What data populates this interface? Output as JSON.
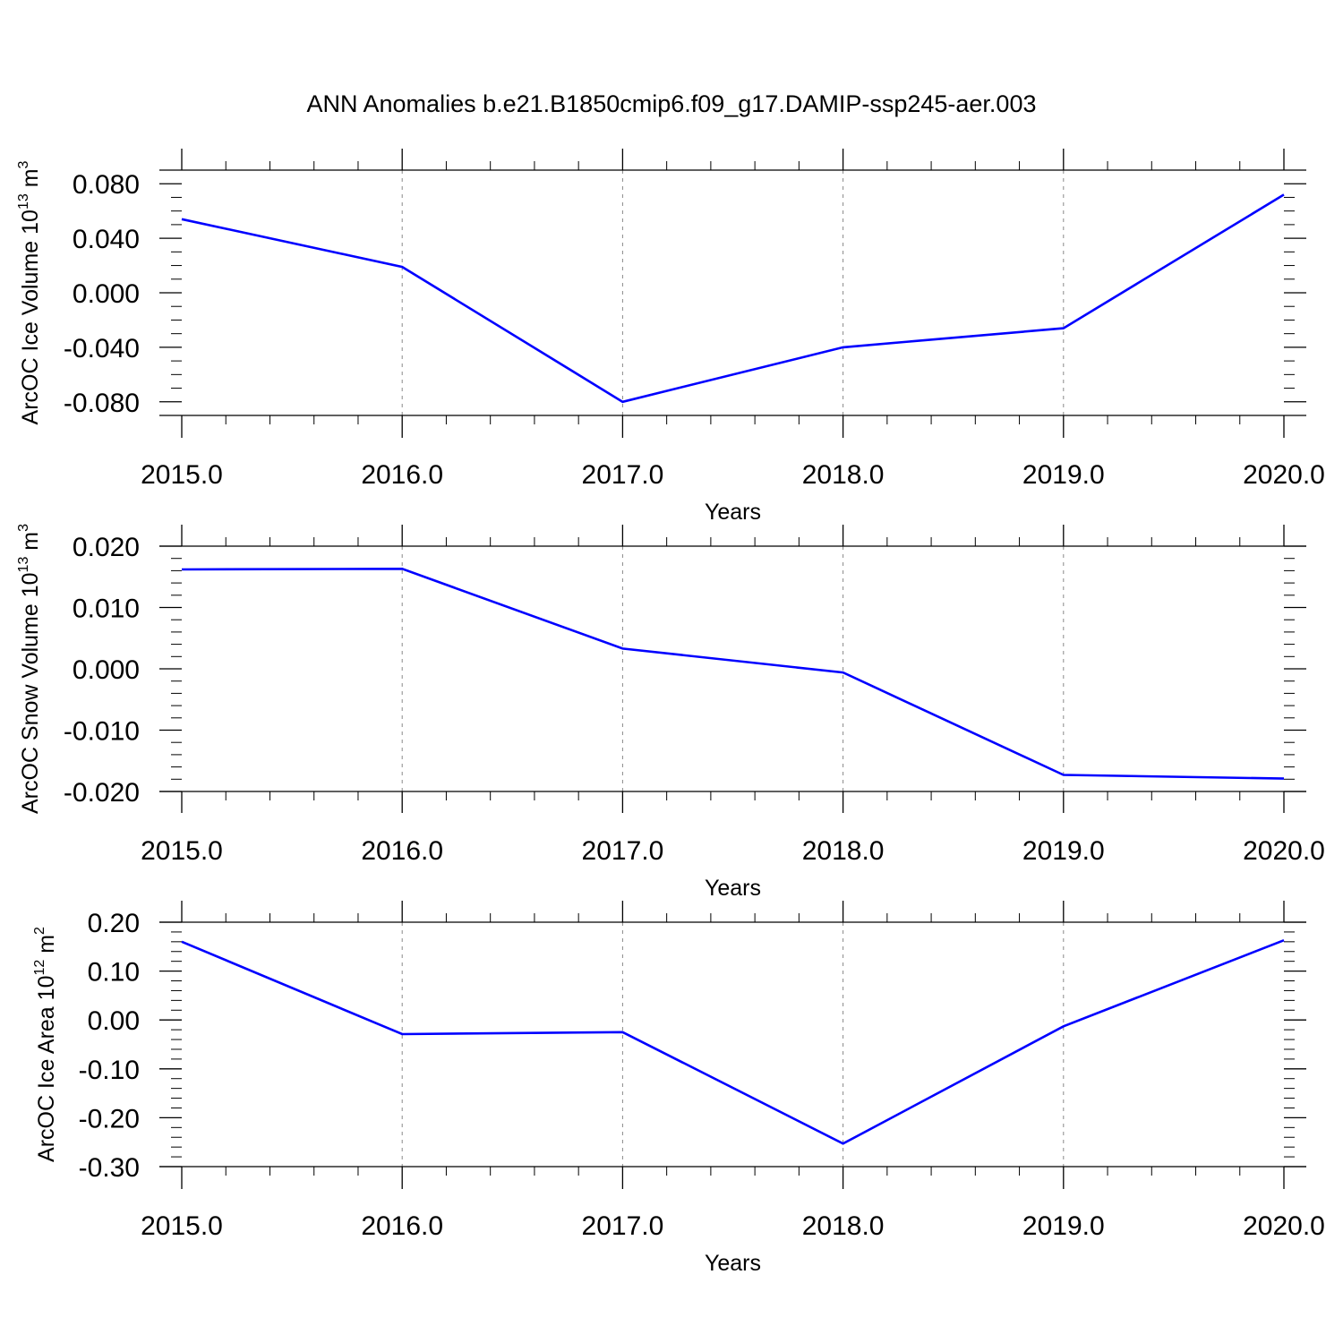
{
  "title": "ANN Anomalies b.e21.B1850cmip6.f09_g17.DAMIP-ssp245-aer.003",
  "line_color": "#0000ff",
  "chart_data": [
    {
      "type": "line",
      "ylabel": "ArcOC Ice Volume 10",
      "ylabel_exponent": "13",
      "ylabel_unit": " m",
      "ylabel_unit_exponent": "3",
      "xlabel": "Years",
      "xlim": [
        2015,
        2020
      ],
      "ylim": [
        -0.09,
        0.09
      ],
      "x_ticks": [
        2015,
        2016,
        2017,
        2018,
        2019,
        2020
      ],
      "x_tick_labels": [
        "2015.0",
        "2016.0",
        "2017.0",
        "2018.0",
        "2019.0",
        "2020.0"
      ],
      "y_ticks": [
        0.08,
        0.04,
        0.0,
        -0.04,
        -0.08
      ],
      "y_tick_labels": [
        "0.080",
        "0.040",
        "0.000",
        "-0.040",
        "-0.080"
      ],
      "y_minor_step": 0.01,
      "grid": "vertical dashed at major x ticks",
      "x": [
        2015,
        2016,
        2017,
        2018,
        2019,
        2020
      ],
      "y": [
        0.054,
        0.019,
        -0.08,
        -0.04,
        -0.026,
        0.072
      ]
    },
    {
      "type": "line",
      "ylabel": "ArcOC Snow Volume 10",
      "ylabel_exponent": "13",
      "ylabel_unit": " m",
      "ylabel_unit_exponent": "3",
      "xlabel": "Years",
      "xlim": [
        2015,
        2020
      ],
      "ylim": [
        -0.02,
        0.02
      ],
      "x_ticks": [
        2015,
        2016,
        2017,
        2018,
        2019,
        2020
      ],
      "x_tick_labels": [
        "2015.0",
        "2016.0",
        "2017.0",
        "2018.0",
        "2019.0",
        "2020.0"
      ],
      "y_ticks": [
        0.02,
        0.01,
        0.0,
        -0.01,
        -0.02
      ],
      "y_tick_labels": [
        "0.020",
        "0.010",
        "0.000",
        "-0.010",
        "-0.020"
      ],
      "y_minor_step": 0.002,
      "grid": "vertical dashed at major x ticks",
      "x": [
        2015,
        2016,
        2017,
        2018,
        2019,
        2020
      ],
      "y": [
        0.0162,
        0.0163,
        0.0033,
        -0.0006,
        -0.0173,
        -0.0179
      ]
    },
    {
      "type": "line",
      "ylabel": "ArcOC Ice Area 10",
      "ylabel_exponent": "12",
      "ylabel_unit": " m",
      "ylabel_unit_exponent": "2",
      "xlabel": "Years",
      "xlim": [
        2015,
        2020
      ],
      "ylim": [
        -0.3,
        0.2
      ],
      "x_ticks": [
        2015,
        2016,
        2017,
        2018,
        2019,
        2020
      ],
      "x_tick_labels": [
        "2015.0",
        "2016.0",
        "2017.0",
        "2018.0",
        "2019.0",
        "2020.0"
      ],
      "y_ticks": [
        0.2,
        0.1,
        0.0,
        -0.1,
        -0.2,
        -0.3
      ],
      "y_tick_labels": [
        "0.20",
        "0.10",
        "0.00",
        "-0.10",
        "-0.20",
        "-0.30"
      ],
      "y_minor_step": 0.02,
      "grid": "vertical dashed at major x ticks",
      "x": [
        2015,
        2016,
        2017,
        2018,
        2019,
        2020
      ],
      "y": [
        0.16,
        -0.029,
        -0.025,
        -0.253,
        -0.013,
        0.163
      ]
    }
  ]
}
